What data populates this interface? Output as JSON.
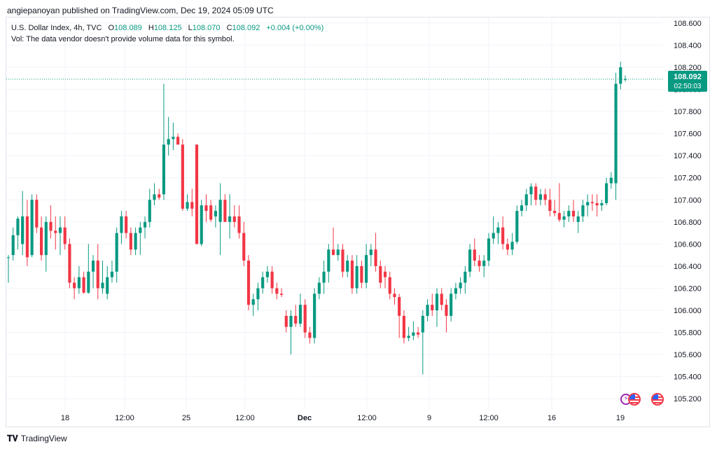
{
  "publisher": "angiepanoyan published on TradingView.com, Dec 19, 2024 05:09 UTC",
  "legend": {
    "symbol": "U.S. Dollar Index, 4h, TVC",
    "o_label": "O",
    "o_value": "108.089",
    "h_label": "H",
    "h_value": "108.125",
    "l_label": "L",
    "l_value": "108.070",
    "c_label": "C",
    "c_value": "108.092",
    "change": "+0.004 (+0.00%)",
    "vol_note": "Vol: The data vendor doesn't provide volume data for this symbol."
  },
  "current_price": {
    "price": "108.092",
    "countdown": "02:50:03",
    "value": 108.092
  },
  "footer": {
    "brand": "TradingView",
    "logo_icon": "tradingview-logo-icon"
  },
  "events": [
    {
      "icon": "lightning-icon",
      "marker": "us-flag-icon"
    },
    {
      "icon": "us-flag-icon"
    }
  ],
  "colors": {
    "up": "#089981",
    "down": "#f23645",
    "grid": "#f0f3fa",
    "axis_text": "#131722"
  },
  "chart_data": {
    "type": "candlestick",
    "title": "",
    "y_axis": {
      "range": [
        105.1,
        108.65
      ],
      "ticks": [
        "108.600",
        "108.400",
        "108.200",
        "108.000",
        "107.800",
        "107.600",
        "107.400",
        "107.200",
        "107.000",
        "106.800",
        "106.600",
        "106.400",
        "106.200",
        "106.000",
        "105.800",
        "105.600",
        "105.400",
        "105.200"
      ]
    },
    "x_axis": {
      "ticks": [
        "18",
        "12:00",
        "25",
        "12:00",
        "Dec",
        "12:00",
        "9",
        "12:00",
        "16",
        "19"
      ]
    },
    "grid": true,
    "candles": [
      {
        "o": 106.48,
        "h": 106.5,
        "l": 106.25,
        "c": 106.48
      },
      {
        "o": 106.5,
        "h": 106.75,
        "l": 106.45,
        "c": 106.68
      },
      {
        "o": 106.68,
        "h": 106.85,
        "l": 106.55,
        "c": 106.83
      },
      {
        "o": 106.6,
        "h": 107.08,
        "l": 106.5,
        "c": 106.85
      },
      {
        "o": 106.85,
        "h": 107.0,
        "l": 106.4,
        "c": 106.48
      },
      {
        "o": 106.5,
        "h": 107.05,
        "l": 106.48,
        "c": 107.0
      },
      {
        "o": 107.0,
        "h": 107.05,
        "l": 106.7,
        "c": 106.75
      },
      {
        "o": 106.75,
        "h": 106.85,
        "l": 106.45,
        "c": 106.5
      },
      {
        "o": 106.5,
        "h": 106.85,
        "l": 106.35,
        "c": 106.8
      },
      {
        "o": 106.8,
        "h": 106.95,
        "l": 106.65,
        "c": 106.72
      },
      {
        "o": 106.72,
        "h": 106.85,
        "l": 106.55,
        "c": 106.7
      },
      {
        "o": 106.7,
        "h": 106.85,
        "l": 106.5,
        "c": 106.75
      },
      {
        "o": 106.75,
        "h": 106.85,
        "l": 106.55,
        "c": 106.6
      },
      {
        "o": 106.6,
        "h": 106.65,
        "l": 106.2,
        "c": 106.25
      },
      {
        "o": 106.25,
        "h": 106.3,
        "l": 106.1,
        "c": 106.2
      },
      {
        "o": 106.2,
        "h": 106.4,
        "l": 106.15,
        "c": 106.3
      },
      {
        "o": 106.3,
        "h": 106.35,
        "l": 106.15,
        "c": 106.16
      },
      {
        "o": 106.16,
        "h": 106.6,
        "l": 106.15,
        "c": 106.35
      },
      {
        "o": 106.35,
        "h": 106.5,
        "l": 106.2,
        "c": 106.45
      },
      {
        "o": 106.45,
        "h": 106.6,
        "l": 106.1,
        "c": 106.2
      },
      {
        "o": 106.2,
        "h": 106.45,
        "l": 106.15,
        "c": 106.25
      },
      {
        "o": 106.15,
        "h": 106.4,
        "l": 106.1,
        "c": 106.3
      },
      {
        "o": 106.3,
        "h": 106.45,
        "l": 106.25,
        "c": 106.35
      },
      {
        "o": 106.35,
        "h": 106.75,
        "l": 106.25,
        "c": 106.7
      },
      {
        "o": 106.7,
        "h": 106.9,
        "l": 106.6,
        "c": 106.85
      },
      {
        "o": 106.85,
        "h": 106.9,
        "l": 106.65,
        "c": 106.7
      },
      {
        "o": 106.7,
        "h": 106.75,
        "l": 106.5,
        "c": 106.55
      },
      {
        "o": 106.55,
        "h": 106.75,
        "l": 106.5,
        "c": 106.7
      },
      {
        "o": 106.7,
        "h": 106.8,
        "l": 106.5,
        "c": 106.75
      },
      {
        "o": 106.75,
        "h": 106.85,
        "l": 106.65,
        "c": 106.8
      },
      {
        "o": 106.8,
        "h": 107.1,
        "l": 106.75,
        "c": 107.0
      },
      {
        "o": 107.0,
        "h": 107.15,
        "l": 106.95,
        "c": 107.05
      },
      {
        "o": 107.05,
        "h": 107.1,
        "l": 107.0,
        "c": 107.02
      },
      {
        "o": 107.05,
        "h": 108.05,
        "l": 107.0,
        "c": 107.5
      },
      {
        "o": 107.5,
        "h": 107.75,
        "l": 107.4,
        "c": 107.55
      },
      {
        "o": 107.55,
        "h": 107.7,
        "l": 107.45,
        "c": 107.57
      },
      {
        "o": 107.57,
        "h": 107.6,
        "l": 107.5,
        "c": 107.5
      },
      {
        "o": 107.5,
        "h": 107.55,
        "l": 106.9,
        "c": 106.92
      },
      {
        "o": 106.92,
        "h": 107.05,
        "l": 106.9,
        "c": 106.98
      },
      {
        "o": 106.98,
        "h": 107.1,
        "l": 106.85,
        "c": 106.92
      },
      {
        "o": 107.5,
        "h": 107.5,
        "l": 106.6,
        "c": 106.6
      },
      {
        "o": 106.6,
        "h": 107.0,
        "l": 106.58,
        "c": 106.95
      },
      {
        "o": 106.95,
        "h": 107.05,
        "l": 106.8,
        "c": 106.9
      },
      {
        "o": 106.95,
        "h": 107.0,
        "l": 106.8,
        "c": 106.82
      },
      {
        "o": 106.85,
        "h": 106.95,
        "l": 106.75,
        "c": 106.9
      },
      {
        "o": 106.8,
        "h": 107.15,
        "l": 106.5,
        "c": 107.0
      },
      {
        "o": 107.0,
        "h": 107.05,
        "l": 106.8,
        "c": 106.8
      },
      {
        "o": 106.8,
        "h": 107.05,
        "l": 106.65,
        "c": 106.85
      },
      {
        "o": 106.85,
        "h": 106.95,
        "l": 106.75,
        "c": 106.8
      },
      {
        "o": 106.85,
        "h": 106.95,
        "l": 106.65,
        "c": 106.7
      },
      {
        "o": 106.7,
        "h": 106.8,
        "l": 106.4,
        "c": 106.45
      },
      {
        "o": 106.45,
        "h": 106.5,
        "l": 106.0,
        "c": 106.05
      },
      {
        "o": 106.05,
        "h": 106.15,
        "l": 105.95,
        "c": 106.1
      },
      {
        "o": 106.1,
        "h": 106.25,
        "l": 106.0,
        "c": 106.2
      },
      {
        "o": 106.2,
        "h": 106.35,
        "l": 106.15,
        "c": 106.3
      },
      {
        "o": 106.3,
        "h": 106.4,
        "l": 106.25,
        "c": 106.35
      },
      {
        "o": 106.35,
        "h": 106.4,
        "l": 106.15,
        "c": 106.2
      },
      {
        "o": 106.2,
        "h": 106.25,
        "l": 106.1,
        "c": 106.15
      },
      {
        "o": 106.15,
        "h": 106.2,
        "l": 106.12,
        "c": 106.14
      },
      {
        "o": 105.95,
        "h": 106.0,
        "l": 105.8,
        "c": 105.85
      },
      {
        "o": 105.85,
        "h": 106.0,
        "l": 105.6,
        "c": 105.95
      },
      {
        "o": 105.95,
        "h": 106.05,
        "l": 105.85,
        "c": 105.88
      },
      {
        "o": 105.88,
        "h": 106.15,
        "l": 105.85,
        "c": 106.05
      },
      {
        "o": 106.05,
        "h": 106.1,
        "l": 105.75,
        "c": 105.8
      },
      {
        "o": 105.8,
        "h": 105.85,
        "l": 105.7,
        "c": 105.75
      },
      {
        "o": 105.75,
        "h": 106.2,
        "l": 105.7,
        "c": 106.15
      },
      {
        "o": 106.15,
        "h": 106.3,
        "l": 106.1,
        "c": 106.25
      },
      {
        "o": 106.25,
        "h": 106.45,
        "l": 106.15,
        "c": 106.35
      },
      {
        "o": 106.35,
        "h": 106.6,
        "l": 106.25,
        "c": 106.55
      },
      {
        "o": 106.55,
        "h": 106.75,
        "l": 106.5,
        "c": 106.5
      },
      {
        "o": 106.5,
        "h": 106.6,
        "l": 106.45,
        "c": 106.55
      },
      {
        "o": 106.55,
        "h": 106.6,
        "l": 106.3,
        "c": 106.35
      },
      {
        "o": 106.35,
        "h": 106.5,
        "l": 106.3,
        "c": 106.45
      },
      {
        "o": 106.45,
        "h": 106.5,
        "l": 106.15,
        "c": 106.2
      },
      {
        "o": 106.2,
        "h": 106.5,
        "l": 106.15,
        "c": 106.4
      },
      {
        "o": 106.4,
        "h": 106.45,
        "l": 106.2,
        "c": 106.25
      },
      {
        "o": 106.25,
        "h": 106.6,
        "l": 106.2,
        "c": 106.5
      },
      {
        "o": 106.5,
        "h": 106.6,
        "l": 106.4,
        "c": 106.55
      },
      {
        "o": 106.55,
        "h": 106.7,
        "l": 106.35,
        "c": 106.4
      },
      {
        "o": 106.4,
        "h": 106.45,
        "l": 106.2,
        "c": 106.25
      },
      {
        "o": 106.35,
        "h": 106.4,
        "l": 106.2,
        "c": 106.3
      },
      {
        "o": 106.3,
        "h": 106.35,
        "l": 106.1,
        "c": 106.15
      },
      {
        "o": 106.15,
        "h": 106.2,
        "l": 106.05,
        "c": 106.12
      },
      {
        "o": 106.12,
        "h": 106.15,
        "l": 105.75,
        "c": 105.95
      },
      {
        "o": 105.95,
        "h": 106.0,
        "l": 105.7,
        "c": 105.75
      },
      {
        "o": 105.75,
        "h": 105.85,
        "l": 105.72,
        "c": 105.77
      },
      {
        "o": 105.77,
        "h": 105.9,
        "l": 105.73,
        "c": 105.8
      },
      {
        "o": 105.8,
        "h": 105.85,
        "l": 105.75,
        "c": 105.78
      },
      {
        "o": 105.8,
        "h": 106.0,
        "l": 105.42,
        "c": 105.95
      },
      {
        "o": 105.95,
        "h": 106.1,
        "l": 105.9,
        "c": 106.05
      },
      {
        "o": 106.05,
        "h": 106.15,
        "l": 105.95,
        "c": 106.0
      },
      {
        "o": 106.0,
        "h": 106.2,
        "l": 105.85,
        "c": 106.15
      },
      {
        "o": 106.15,
        "h": 106.2,
        "l": 106.0,
        "c": 106.05
      },
      {
        "o": 106.05,
        "h": 106.1,
        "l": 105.8,
        "c": 105.95
      },
      {
        "o": 105.95,
        "h": 106.2,
        "l": 105.9,
        "c": 106.15
      },
      {
        "o": 106.15,
        "h": 106.25,
        "l": 106.1,
        "c": 106.2
      },
      {
        "o": 106.2,
        "h": 106.3,
        "l": 106.15,
        "c": 106.25
      },
      {
        "o": 106.25,
        "h": 106.4,
        "l": 106.15,
        "c": 106.35
      },
      {
        "o": 106.35,
        "h": 106.6,
        "l": 106.3,
        "c": 106.55
      },
      {
        "o": 106.55,
        "h": 106.65,
        "l": 106.4,
        "c": 106.45
      },
      {
        "o": 106.45,
        "h": 106.5,
        "l": 106.35,
        "c": 106.4
      },
      {
        "o": 106.4,
        "h": 106.5,
        "l": 106.3,
        "c": 106.45
      },
      {
        "o": 106.45,
        "h": 106.7,
        "l": 106.4,
        "c": 106.65
      },
      {
        "o": 106.65,
        "h": 106.85,
        "l": 106.6,
        "c": 106.7
      },
      {
        "o": 106.7,
        "h": 106.8,
        "l": 106.6,
        "c": 106.75
      },
      {
        "o": 106.75,
        "h": 106.85,
        "l": 106.55,
        "c": 106.6
      },
      {
        "o": 106.6,
        "h": 106.65,
        "l": 106.5,
        "c": 106.55
      },
      {
        "o": 106.55,
        "h": 106.7,
        "l": 106.5,
        "c": 106.62
      },
      {
        "o": 106.62,
        "h": 106.95,
        "l": 106.6,
        "c": 106.9
      },
      {
        "o": 106.9,
        "h": 107.0,
        "l": 106.85,
        "c": 106.95
      },
      {
        "o": 106.95,
        "h": 107.1,
        "l": 106.9,
        "c": 107.05
      },
      {
        "o": 107.05,
        "h": 107.15,
        "l": 106.95,
        "c": 107.12
      },
      {
        "o": 107.12,
        "h": 107.15,
        "l": 106.95,
        "c": 107.0
      },
      {
        "o": 107.0,
        "h": 107.1,
        "l": 106.95,
        "c": 107.05
      },
      {
        "o": 107.05,
        "h": 107.1,
        "l": 106.95,
        "c": 107.0
      },
      {
        "o": 107.0,
        "h": 107.1,
        "l": 106.85,
        "c": 106.9
      },
      {
        "o": 106.9,
        "h": 107.0,
        "l": 106.85,
        "c": 106.88
      },
      {
        "o": 106.88,
        "h": 107.15,
        "l": 106.8,
        "c": 106.82
      },
      {
        "o": 106.82,
        "h": 106.9,
        "l": 106.75,
        "c": 106.85
      },
      {
        "o": 106.85,
        "h": 106.95,
        "l": 106.8,
        "c": 106.9
      },
      {
        "o": 106.9,
        "h": 107.0,
        "l": 106.8,
        "c": 106.85
      },
      {
        "o": 106.8,
        "h": 106.9,
        "l": 106.7,
        "c": 106.85
      },
      {
        "o": 106.85,
        "h": 107.0,
        "l": 106.8,
        "c": 106.95
      },
      {
        "o": 106.95,
        "h": 107.05,
        "l": 106.85,
        "c": 106.98
      },
      {
        "o": 106.98,
        "h": 107.05,
        "l": 106.9,
        "c": 106.97
      },
      {
        "o": 106.97,
        "h": 107.05,
        "l": 106.85,
        "c": 106.95
      },
      {
        "o": 106.95,
        "h": 107.0,
        "l": 106.9,
        "c": 106.97
      },
      {
        "o": 106.97,
        "h": 107.2,
        "l": 106.95,
        "c": 107.15
      },
      {
        "o": 107.15,
        "h": 107.25,
        "l": 107.1,
        "c": 107.2
      },
      {
        "o": 107.15,
        "h": 108.15,
        "l": 107.0,
        "c": 108.05
      },
      {
        "o": 108.05,
        "h": 108.25,
        "l": 108.0,
        "c": 108.2
      },
      {
        "o": 108.089,
        "h": 108.125,
        "l": 108.07,
        "c": 108.092
      }
    ]
  }
}
